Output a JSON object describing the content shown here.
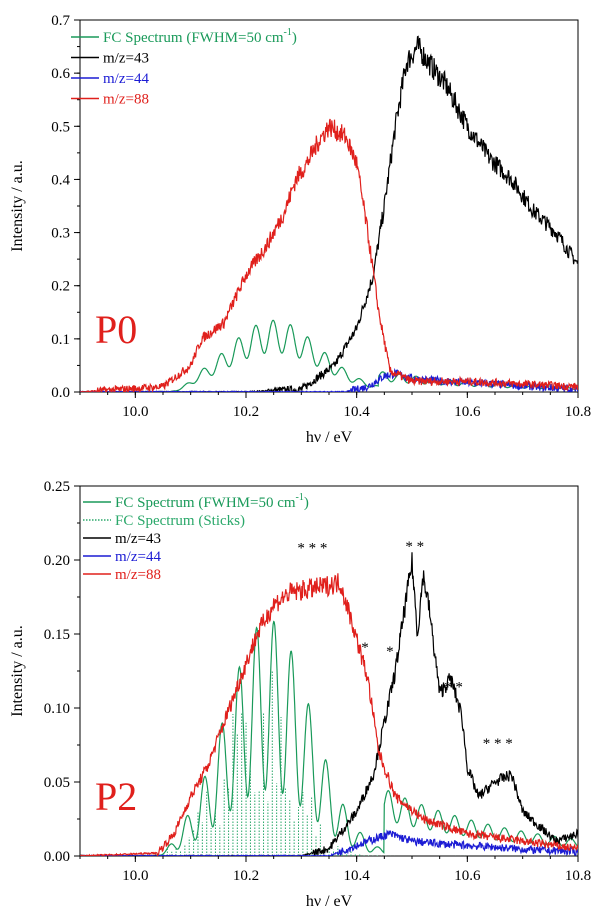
{
  "chart_data": [
    {
      "type": "line",
      "panel_label": "P0",
      "xlabel": "hν / eV",
      "ylabel": "Intensity / a.u.",
      "xlim": [
        9.9,
        10.8
      ],
      "ylim": [
        0,
        0.7
      ],
      "xticks": [
        10.0,
        10.2,
        10.4,
        10.6,
        10.8
      ],
      "xtick_labels": [
        "10.0",
        "10.2",
        "10.4",
        "10.6",
        "10.8"
      ],
      "yticks": [
        0.0,
        0.1,
        0.2,
        0.3,
        0.4,
        0.5,
        0.6,
        0.7
      ],
      "ytick_labels": [
        "0.0",
        "0.1",
        "0.2",
        "0.3",
        "0.4",
        "0.5",
        "0.6",
        "0.7"
      ],
      "legend_position": "top-left",
      "series": [
        {
          "name": "FC Spectrum (FWHM=50 cm-1)",
          "legend_main": "FC Spectrum (FWHM=50 cm",
          "legend_sup": "-1",
          "legend_end": ")",
          "color": "#1a9a5a",
          "kind": "fc_smooth",
          "onset": 10.06,
          "peak_at": 10.25,
          "peak": 0.135,
          "width": 0.12,
          "offset": 0.075,
          "period": 0.0315,
          "mod": 0.45,
          "tail_after": 10.44,
          "tail_level": 0.03
        },
        {
          "name": "m/z=43",
          "color": "#000000",
          "points": [
            [
              9.9,
              0.0
            ],
            [
              10.2,
              0.0
            ],
            [
              10.3,
              0.005
            ],
            [
              10.36,
              0.05
            ],
            [
              10.4,
              0.12
            ],
            [
              10.43,
              0.22
            ],
            [
              10.45,
              0.35
            ],
            [
              10.47,
              0.5
            ],
            [
              10.49,
              0.62
            ],
            [
              10.51,
              0.65
            ],
            [
              10.53,
              0.62
            ],
            [
              10.56,
              0.58
            ],
            [
              10.6,
              0.5
            ],
            [
              10.64,
              0.44
            ],
            [
              10.68,
              0.4
            ],
            [
              10.72,
              0.34
            ],
            [
              10.76,
              0.3
            ],
            [
              10.8,
              0.24
            ]
          ]
        },
        {
          "name": "m/z=44",
          "color": "#1c1cd4",
          "points": [
            [
              9.9,
              0.0
            ],
            [
              10.38,
              0.0
            ],
            [
              10.42,
              0.01
            ],
            [
              10.45,
              0.03
            ],
            [
              10.47,
              0.035
            ],
            [
              10.5,
              0.025
            ],
            [
              10.56,
              0.02
            ],
            [
              10.65,
              0.015
            ],
            [
              10.72,
              0.01
            ],
            [
              10.8,
              0.005
            ]
          ]
        },
        {
          "name": "m/z=88",
          "color": "#e0201c",
          "points": [
            [
              9.9,
              0.0
            ],
            [
              10.05,
              0.01
            ],
            [
              10.1,
              0.05
            ],
            [
              10.12,
              0.1
            ],
            [
              10.16,
              0.13
            ],
            [
              10.2,
              0.22
            ],
            [
              10.24,
              0.28
            ],
            [
              10.27,
              0.34
            ],
            [
              10.29,
              0.4
            ],
            [
              10.31,
              0.43
            ],
            [
              10.33,
              0.47
            ],
            [
              10.35,
              0.5
            ],
            [
              10.38,
              0.48
            ],
            [
              10.4,
              0.43
            ],
            [
              10.42,
              0.3
            ],
            [
              10.44,
              0.15
            ],
            [
              10.46,
              0.04
            ],
            [
              10.5,
              0.02
            ],
            [
              10.6,
              0.02
            ],
            [
              10.7,
              0.015
            ],
            [
              10.8,
              0.01
            ]
          ]
        }
      ]
    },
    {
      "type": "line",
      "panel_label": "P2",
      "xlabel": "hν / eV",
      "ylabel": "Intensity / a.u.",
      "xlim": [
        9.9,
        10.8
      ],
      "ylim": [
        0,
        0.25
      ],
      "xticks": [
        10.0,
        10.2,
        10.4,
        10.6,
        10.8
      ],
      "xtick_labels": [
        "10.0",
        "10.2",
        "10.4",
        "10.6",
        "10.8"
      ],
      "yticks": [
        0.0,
        0.05,
        0.1,
        0.15,
        0.2,
        0.25
      ],
      "ytick_labels": [
        "0.00",
        "0.05",
        "0.10",
        "0.15",
        "0.20",
        "0.25"
      ],
      "legend_position": "top-left",
      "series": [
        {
          "name": "FC Spectrum (FWHM=50 cm-1)",
          "legend_main": "FC Spectrum (FWHM=50 cm",
          "legend_sup": "-1",
          "legend_end": ")",
          "color": "#1a9a5a",
          "kind": "fc_smooth",
          "onset": 10.03,
          "peak_at": 10.24,
          "peak": 0.16,
          "width": 0.11,
          "offset": 0.0,
          "period": 0.0315,
          "mod": 0.72,
          "tail_after": 10.45,
          "tail_level": 0.035
        },
        {
          "name": "FC Spectrum (Sticks)",
          "color": "#2aa86a",
          "kind": "fc_sticks",
          "x_start": 10.05,
          "x_end": 10.6,
          "step": 0.0079,
          "peak_at": 10.22,
          "peak": 0.14,
          "width": 0.09
        },
        {
          "name": "m/z=43",
          "color": "#000000",
          "points": [
            [
              9.9,
              0.0
            ],
            [
              10.3,
              0.0
            ],
            [
              10.35,
              0.005
            ],
            [
              10.4,
              0.03
            ],
            [
              10.43,
              0.055
            ],
            [
              10.45,
              0.09
            ],
            [
              10.47,
              0.125
            ],
            [
              10.49,
              0.175
            ],
            [
              10.5,
              0.198
            ],
            [
              10.51,
              0.15
            ],
            [
              10.52,
              0.19
            ],
            [
              10.53,
              0.17
            ],
            [
              10.55,
              0.11
            ],
            [
              10.57,
              0.12
            ],
            [
              10.59,
              0.095
            ],
            [
              10.6,
              0.06
            ],
            [
              10.62,
              0.04
            ],
            [
              10.65,
              0.05
            ],
            [
              10.68,
              0.055
            ],
            [
              10.7,
              0.03
            ],
            [
              10.73,
              0.02
            ],
            [
              10.76,
              0.01
            ],
            [
              10.8,
              0.015
            ]
          ]
        },
        {
          "name": "m/z=44",
          "color": "#1c1cd4",
          "points": [
            [
              9.9,
              0.0
            ],
            [
              10.35,
              0.0
            ],
            [
              10.42,
              0.01
            ],
            [
              10.46,
              0.015
            ],
            [
              10.5,
              0.01
            ],
            [
              10.56,
              0.008
            ],
            [
              10.65,
              0.006
            ],
            [
              10.72,
              0.004
            ],
            [
              10.8,
              0.003
            ]
          ]
        },
        {
          "name": "m/z=88",
          "color": "#e0201c",
          "points": [
            [
              9.9,
              0.0
            ],
            [
              10.04,
              0.002
            ],
            [
              10.07,
              0.015
            ],
            [
              10.1,
              0.04
            ],
            [
              10.13,
              0.06
            ],
            [
              10.16,
              0.09
            ],
            [
              10.19,
              0.12
            ],
            [
              10.22,
              0.15
            ],
            [
              10.25,
              0.17
            ],
            [
              10.28,
              0.178
            ],
            [
              10.31,
              0.18
            ],
            [
              10.34,
              0.182
            ],
            [
              10.37,
              0.185
            ],
            [
              10.39,
              0.16
            ],
            [
              10.42,
              0.12
            ],
            [
              10.44,
              0.07
            ],
            [
              10.47,
              0.04
            ],
            [
              10.52,
              0.025
            ],
            [
              10.6,
              0.015
            ],
            [
              10.7,
              0.01
            ],
            [
              10.8,
              0.005
            ]
          ]
        }
      ],
      "annotations": [
        {
          "text": "* * *",
          "x": 10.32,
          "y": 0.205
        },
        {
          "text": "* *",
          "x": 10.505,
          "y": 0.206
        },
        {
          "text": "*",
          "x": 10.415,
          "y": 0.138
        },
        {
          "text": "*",
          "x": 10.46,
          "y": 0.135
        },
        {
          "text": "* *",
          "x": 10.575,
          "y": 0.111
        },
        {
          "text": "* * *",
          "x": 10.655,
          "y": 0.073
        }
      ]
    }
  ]
}
